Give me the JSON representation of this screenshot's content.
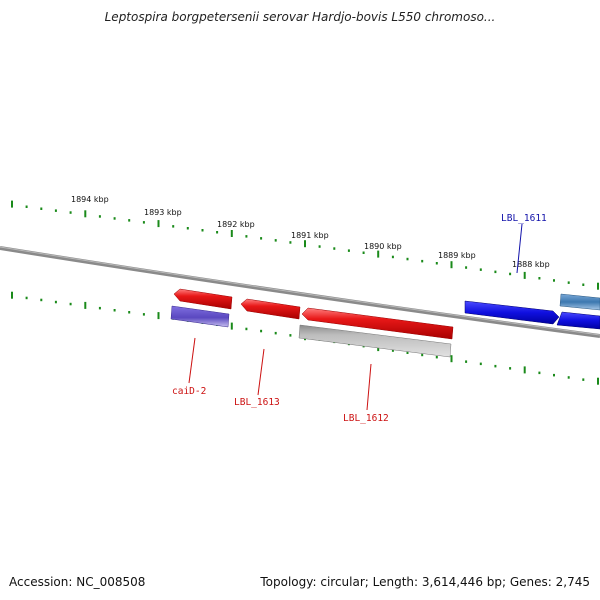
{
  "title": "Leptospira borgpetersenii serovar Hardjo-bovis L550 chromoso...",
  "footer": {
    "accession": "Accession: NC_008508",
    "topology": "Topology: circular; Length: 3,614,446 bp; Genes: 2,745"
  },
  "colors": {
    "forward_gene": "#2222e6",
    "reverse_gene": "#e61a1a",
    "pseudo_gene": "#b4b4b4",
    "other_feature_blue": "#6b5bd2",
    "other_feature_steel": "#4a86b8",
    "ruler_tick": "#1a8a1a",
    "backbone": "#7a7a7a",
    "label_reverse": "#cc1111",
    "label_forward": "#1111aa"
  },
  "ruler_labels": [
    "1894 kbp",
    "1893 kbp",
    "1892 kbp",
    "1891 kbp",
    "1890 kbp",
    "1889 kbp",
    "1888 kbp"
  ],
  "genes": [
    {
      "label": "caiD-2",
      "strand": "reverse"
    },
    {
      "label": "LBL_1613",
      "strand": "reverse"
    },
    {
      "label": "LBL_1612",
      "strand": "reverse"
    },
    {
      "label": "LBL_1611",
      "strand": "forward"
    }
  ]
}
